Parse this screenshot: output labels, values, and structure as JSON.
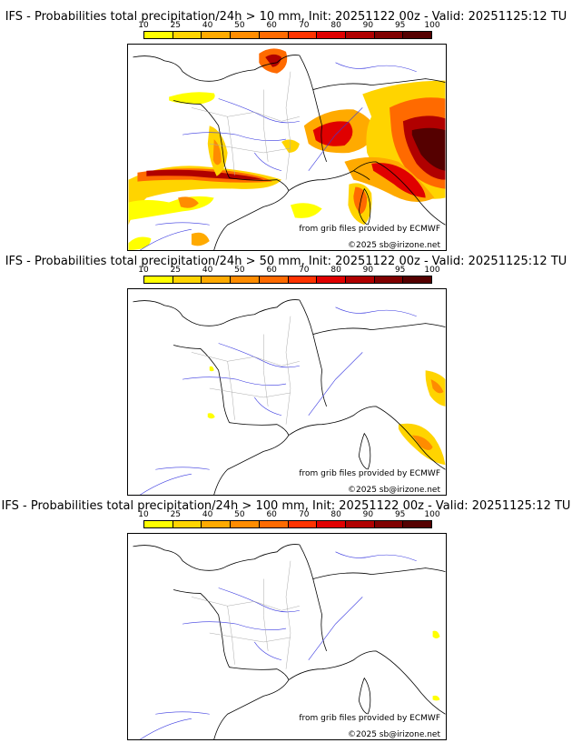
{
  "legend": {
    "ticks": [
      "10",
      "25",
      "40",
      "50",
      "60",
      "70",
      "80",
      "90",
      "95",
      "100"
    ],
    "colors": [
      "#ffff00",
      "#ffd400",
      "#ffaa00",
      "#ff8c00",
      "#ff6a00",
      "#ff3300",
      "#e00000",
      "#b00000",
      "#800000",
      "#550000"
    ]
  },
  "panels": [
    {
      "title": "IFS - Probabilities total precipitation/24h > 10 mm, Init: 20251122 00z - Valid: 20251125:12 TU",
      "credit_source": "from grib files provided by ECMWF",
      "credit_copyright": "©2025 sb@irizone.net"
    },
    {
      "title": "IFS - Probabilities total precipitation/24h > 50 mm, Init: 20251122 00z - Valid: 20251125:12 TU",
      "credit_source": "from grib files provided by ECMWF",
      "credit_copyright": "©2025 sb@irizone.net"
    },
    {
      "title": "IFS - Probabilities total precipitation/24h > 100 mm, Init: 20251122 00z - Valid: 20251125:12 TU",
      "credit_source": "from grib files provided by ECMWF",
      "credit_copyright": "©2025 sb@irizone.net"
    }
  ]
}
